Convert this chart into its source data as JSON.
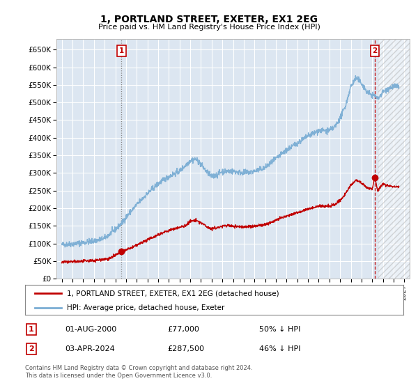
{
  "title": "1, PORTLAND STREET, EXETER, EX1 2EG",
  "subtitle": "Price paid vs. HM Land Registry's House Price Index (HPI)",
  "background_color": "#ffffff",
  "plot_bg_color": "#dce6f1",
  "grid_color": "#ffffff",
  "hpi_color": "#7aadd4",
  "price_color": "#c00000",
  "sale1_date_x": 2000.58,
  "sale1_price": 77000,
  "sale1_label": "1",
  "sale2_date_x": 2024.25,
  "sale2_price": 287500,
  "sale2_label": "2",
  "hatched_region_start": 2024.6,
  "hatched_region_end": 2027.5,
  "ylim_min": 0,
  "ylim_max": 680000,
  "xlim_min": 1994.5,
  "xlim_max": 2027.5,
  "legend_label_price": "1, PORTLAND STREET, EXETER, EX1 2EG (detached house)",
  "legend_label_hpi": "HPI: Average price, detached house, Exeter",
  "footnote1": "Contains HM Land Registry data © Crown copyright and database right 2024.",
  "footnote2": "This data is licensed under the Open Government Licence v3.0.",
  "table_row1_num": "1",
  "table_row1_date": "01-AUG-2000",
  "table_row1_price": "£77,000",
  "table_row1_hpi": "50% ↓ HPI",
  "table_row2_num": "2",
  "table_row2_date": "03-APR-2024",
  "table_row2_price": "£287,500",
  "table_row2_hpi": "46% ↓ HPI"
}
